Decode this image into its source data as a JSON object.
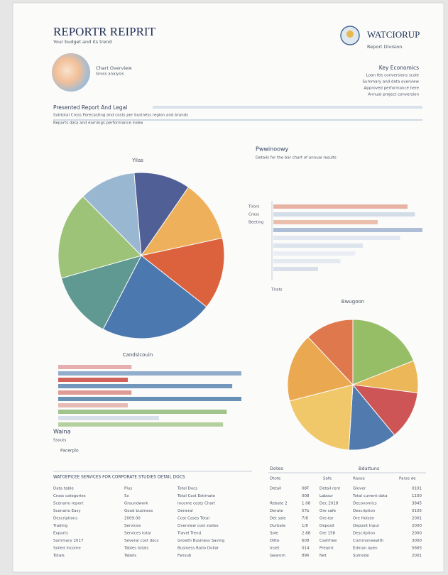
{
  "header": {
    "title": "REPORTR REIPRIT",
    "subtitle": "Your budget and its trend",
    "brand": "WATCIORUP",
    "brand_sub": "Report Division"
  },
  "summary": {
    "label": "Chart Overview",
    "sublabel": "Gross analysis",
    "right_title": "Key Economics",
    "right_lines": [
      "Loan fee conversions scale",
      "Summary and data overview",
      "Approved performance here",
      "Annual project conversion"
    ]
  },
  "section": {
    "heading": "Presented Report And Legal",
    "lines": [
      "Subtotal Cross Forecasting and costs per business region and brands",
      "Reports data and earnings performance index"
    ]
  },
  "pie_left": {
    "type": "pie",
    "title": "Yilas",
    "values": [
      11,
      12,
      14,
      22,
      13,
      17,
      11
    ],
    "colors": [
      "#3e4f8c",
      "#eda84a",
      "#d9522a",
      "#3a6aa8",
      "#4f8f86",
      "#92be6a",
      "#8fb0cc"
    ]
  },
  "bar_right": {
    "type": "bar",
    "title": "Pwwinoowy",
    "subtitle": "Details for the bar chart of annual results",
    "categories": [
      "Tirors",
      "Cross",
      "Beeting",
      null,
      null,
      null,
      null,
      null,
      null
    ],
    "values": [
      90,
      95,
      70,
      100,
      85,
      60,
      55,
      45,
      30
    ],
    "colors": [
      "#e3a592",
      "#cbd7e4",
      "#e7b49c",
      "#9fb3cf",
      "#dde4ee",
      "#d6dfea",
      "#e6ebf2",
      "#e0e6ee",
      "#d2dae6"
    ],
    "footer": "Tlrats"
  },
  "bar_left": {
    "type": "bar",
    "title": "Candslcouin",
    "values": [
      40,
      100,
      38,
      95,
      40,
      100,
      38,
      92,
      55,
      90
    ],
    "colors": [
      "#e2a0a0",
      "#7f9fc2",
      "#c9463e",
      "#5b84b0",
      "#d88a84",
      "#4d7fa8",
      "#e0b0a8",
      "#90b878",
      "#cfd9e6",
      "#a8c88e"
    ]
  },
  "pie_right": {
    "type": "pie",
    "title": "Bwugoon",
    "values": [
      19,
      8,
      12,
      12,
      20,
      17,
      12
    ],
    "colors": [
      "#8cb857",
      "#eab048",
      "#c94444",
      "#3f6ea6",
      "#f0c35a",
      "#e9a13f",
      "#dd6b3b"
    ]
  },
  "notes": {
    "title": "Waina",
    "line": "Ssouts",
    "extra": "Pacerplo"
  },
  "table_left": {
    "heading": "WATOEPICEE SERVICES FOR CORPORATE STUDIES DETAIL DOCS",
    "rows": [
      [
        "Data table",
        "Plus",
        "Total Docs"
      ],
      [
        "Cross categories",
        "5x",
        "Total Cost Estimate"
      ],
      [
        "Scenario report",
        "Groundwork",
        "Income costs Chart"
      ],
      [
        "Scenario Easy",
        "Good business",
        "General"
      ],
      [
        "Descriptions",
        "2009.00",
        "Cost Cases Total"
      ],
      [
        "Trading",
        "Services",
        "Overview cost states"
      ],
      [
        "Exports",
        "Services total",
        "Travel Trend"
      ],
      [
        "Summary 2017",
        "Several cost docs",
        "Growth Business Saving"
      ],
      [
        "Soiled Income",
        "Tables totals",
        "Business Ratio Dollar"
      ],
      [
        "Totals",
        "Tabels",
        "Fansub"
      ]
    ]
  },
  "table_right": {
    "headers": [
      "Dotes",
      "Bdattuns"
    ],
    "subheaders": [
      "Dtote",
      "Safe",
      "Rasue",
      "Parse de"
    ],
    "rows": [
      [
        "Detail",
        "08F",
        "Detail rent",
        "Glover",
        "0101"
      ],
      [
        "",
        "008",
        "Labour",
        "Total current data",
        "1100"
      ],
      [
        "Rebate 2",
        "1.08",
        "Dec 2018",
        "Deconomics",
        "3845"
      ],
      [
        "Derate",
        "57b",
        "Ore safe",
        "Description",
        "0105"
      ],
      [
        "Det sale",
        "7/8",
        "Ore-tar",
        "Ore Holsen",
        "2001"
      ],
      [
        "Durbate",
        "1/8",
        "Deposit",
        "Deposit Input",
        "2000"
      ],
      [
        "Sole",
        "2.88",
        "Ore 158",
        "Description",
        "2000"
      ],
      [
        "Ditte",
        "608",
        "Cashfree",
        "Commonwealth",
        "3000"
      ],
      [
        "Inset",
        "014",
        "Preamt",
        "Edman open",
        "5665"
      ],
      [
        "Gearom",
        "896",
        "Net",
        "Sumode",
        "2001"
      ]
    ]
  }
}
